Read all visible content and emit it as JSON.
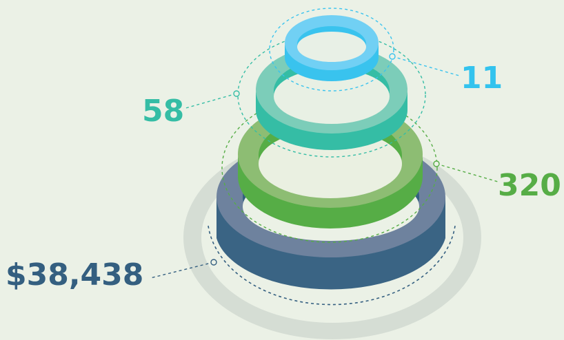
{
  "colors": {
    "background": "#ebf1e6",
    "shadow": "#d5ddd4",
    "navy_top": "#6e829e",
    "navy_side": "#3a6484",
    "navy_inner": "#33607f",
    "green_top": "#8dbd73",
    "green_side": "#56ad46",
    "teal_top": "#7ccdb9",
    "teal_side": "#35bda5",
    "blue_top": "#71d0f4",
    "blue_side": "#39c3ee"
  },
  "values": {
    "top_ring": {
      "text": "11",
      "color": "#33c3ee"
    },
    "second_ring": {
      "text": "58",
      "color": "#35bda5"
    },
    "third_ring": {
      "text": "320",
      "color": "#56ad46"
    },
    "base_ring": {
      "text": "$38,438",
      "color": "#345f80"
    }
  }
}
